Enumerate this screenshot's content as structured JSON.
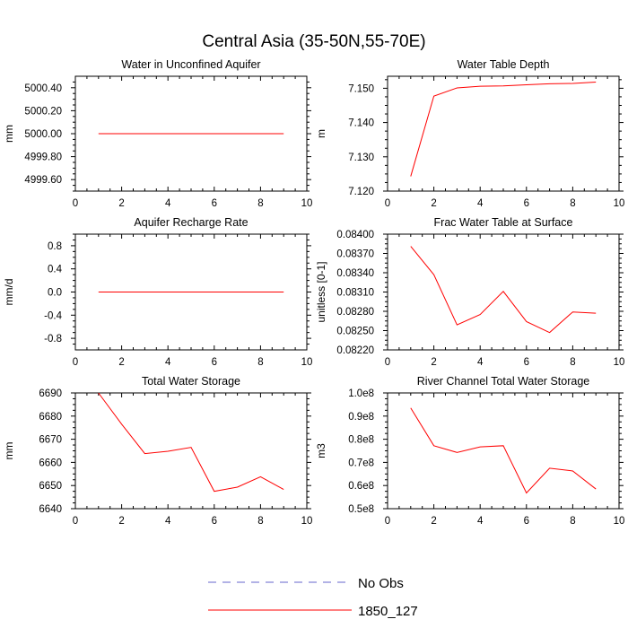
{
  "figure_title": "Central Asia (35-50N,55-70E)",
  "legend": [
    {
      "label": "No Obs",
      "color": "#6666cc",
      "style": "dashed"
    },
    {
      "label": "1850_127",
      "color": "#ff0000",
      "style": "solid"
    }
  ],
  "chart_data": [
    {
      "type": "line",
      "title": "Water in Unconfined Aquifer",
      "ylabel": "mm",
      "xlim": [
        0,
        10
      ],
      "ylim": [
        4999.5,
        5000.5
      ],
      "xticks": [
        0,
        2,
        4,
        6,
        8,
        10
      ],
      "yticks": [
        4999.6,
        4999.8,
        5000.0,
        5000.2,
        5000.4
      ],
      "ytick_labels": [
        "4999.60",
        "4999.80",
        "5000.00",
        "5000.20",
        "5000.40"
      ],
      "series": [
        {
          "name": "1850_127",
          "color": "#ff0000",
          "x": [
            1,
            2,
            3,
            4,
            5,
            6,
            7,
            8,
            9
          ],
          "y": [
            5000.0,
            5000.0,
            5000.0,
            5000.0,
            5000.0,
            5000.0,
            5000.0,
            5000.0,
            5000.0
          ]
        }
      ]
    },
    {
      "type": "line",
      "title": "Water Table Depth",
      "ylabel": "m",
      "xlim": [
        0,
        10
      ],
      "ylim": [
        7.12,
        7.1535
      ],
      "xticks": [
        0,
        2,
        4,
        6,
        8,
        10
      ],
      "yticks": [
        7.12,
        7.13,
        7.14,
        7.15
      ],
      "ytick_labels": [
        "7.120",
        "7.130",
        "7.140",
        "7.150"
      ],
      "series": [
        {
          "name": "1850_127",
          "color": "#ff0000",
          "x": [
            1,
            2,
            3,
            4,
            5,
            6,
            7,
            8,
            9
          ],
          "y": [
            7.1243,
            7.1477,
            7.1501,
            7.1506,
            7.1507,
            7.151,
            7.1513,
            7.1514,
            7.1518
          ]
        }
      ]
    },
    {
      "type": "line",
      "title": "Aquifer Recharge Rate",
      "ylabel": "mm/d",
      "xlim": [
        0,
        10
      ],
      "ylim": [
        -1.0,
        1.0
      ],
      "xticks": [
        0,
        2,
        4,
        6,
        8,
        10
      ],
      "yticks": [
        -0.8,
        -0.4,
        0.0,
        0.4,
        0.8
      ],
      "ytick_labels": [
        "-0.8",
        "-0.4",
        "0.0",
        "0.4",
        "0.8"
      ],
      "series": [
        {
          "name": "1850_127",
          "color": "#ff0000",
          "x": [
            1,
            2,
            3,
            4,
            5,
            6,
            7,
            8,
            9
          ],
          "y": [
            0,
            0,
            0,
            0,
            0,
            0,
            0,
            0,
            0
          ]
        }
      ]
    },
    {
      "type": "line",
      "title": "Frac Water Table at Surface",
      "ylabel": "unitless [0-1]",
      "xlim": [
        0,
        10
      ],
      "ylim": [
        0.0822,
        0.084
      ],
      "xticks": [
        0,
        2,
        4,
        6,
        8,
        10
      ],
      "yticks": [
        0.0822,
        0.0825,
        0.0828,
        0.0831,
        0.0834,
        0.0837,
        0.084
      ],
      "ytick_labels": [
        "0.08220",
        "0.08250",
        "0.08280",
        "0.08310",
        "0.08340",
        "0.08370",
        "0.08400"
      ],
      "series": [
        {
          "name": "1850_127",
          "color": "#ff0000",
          "x": [
            1,
            2,
            3,
            4,
            5,
            6,
            7,
            8,
            9
          ],
          "y": [
            0.08381,
            0.08337,
            0.08259,
            0.08275,
            0.08311,
            0.08264,
            0.08247,
            0.08279,
            0.08277
          ]
        }
      ]
    },
    {
      "type": "line",
      "title": "Total Water Storage",
      "ylabel": "mm",
      "xlim": [
        0,
        10
      ],
      "ylim": [
        6640,
        6690
      ],
      "xticks": [
        0,
        2,
        4,
        6,
        8,
        10
      ],
      "yticks": [
        6640,
        6650,
        6660,
        6670,
        6680,
        6690
      ],
      "ytick_labels": [
        "6640",
        "6650",
        "6660",
        "6670",
        "6680",
        "6690"
      ],
      "series": [
        {
          "name": "1850_127",
          "color": "#ff0000",
          "x": [
            1,
            2,
            3,
            4,
            5,
            6,
            7,
            8,
            9
          ],
          "y": [
            6690,
            6676.5,
            6663.8,
            6664.8,
            6666.5,
            6647.5,
            6649.3,
            6653.8,
            6648.3
          ]
        }
      ]
    },
    {
      "type": "line",
      "title": "River Channel Total Water Storage",
      "ylabel": "m3",
      "xlim": [
        0,
        10
      ],
      "ylim": [
        50000000.0,
        100000000.0
      ],
      "xticks": [
        0,
        2,
        4,
        6,
        8,
        10
      ],
      "yticks": [
        50000000.0,
        60000000.0,
        70000000.0,
        80000000.0,
        90000000.0,
        100000000.0
      ],
      "ytick_labels": [
        "0.5e8",
        "0.6e8",
        "0.7e8",
        "0.8e8",
        "0.9e8",
        "1.0e8"
      ],
      "series": [
        {
          "name": "1850_127",
          "color": "#ff0000",
          "x": [
            1,
            2,
            3,
            4,
            5,
            6,
            7,
            8,
            9
          ],
          "y": [
            93500000.0,
            77200000.0,
            74300000.0,
            76700000.0,
            77200000.0,
            56800000.0,
            67500000.0,
            66300000.0,
            58500000.0
          ]
        }
      ]
    }
  ]
}
